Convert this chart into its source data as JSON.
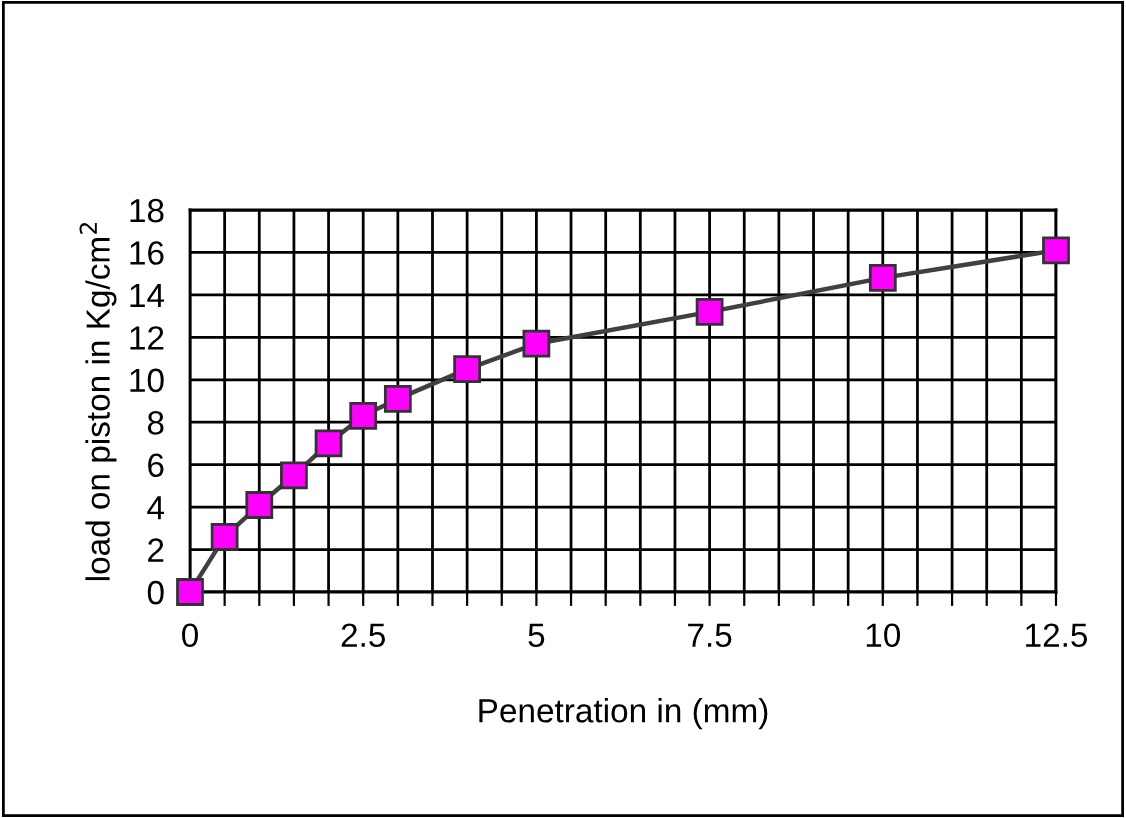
{
  "chart_data": {
    "type": "line",
    "xlabel": "Penetration in (mm)",
    "ylabel": "load on piston in Kg/cm$^{2}$",
    "x": [
      0,
      0.5,
      1,
      1.5,
      2,
      2.5,
      3,
      4,
      5,
      7.5,
      10,
      12.5
    ],
    "series": [
      {
        "color": "#ff00ff",
        "values": [
          0,
          2.6,
          4.1,
          5.5,
          7.0,
          8.3,
          9.1,
          10.5,
          11.7,
          13.2,
          14.8,
          16.1
        ]
      }
    ],
    "xlim": [
      0,
      12.5
    ],
    "ylim": [
      0,
      18
    ],
    "xticks": [
      0,
      {
        "value": 0.5,
        "label": null
      },
      {
        "value": 1,
        "label": null
      },
      {
        "value": 1.5,
        "label": null
      },
      {
        "value": 2,
        "label": null
      },
      2.5,
      {
        "value": 3,
        "label": null
      },
      {
        "value": 3.5,
        "label": null
      },
      {
        "value": 4,
        "label": null
      },
      {
        "value": 4.5,
        "label": null
      },
      5,
      {
        "value": 5.5,
        "label": null
      },
      {
        "value": 6,
        "label": null
      },
      {
        "value": 6.5,
        "label": null
      },
      {
        "value": 7,
        "label": null
      },
      7.5,
      {
        "value": 8,
        "label": null
      },
      {
        "value": 8.5,
        "label": null
      },
      {
        "value": 9,
        "label": null
      },
      {
        "value": 9.5,
        "label": null
      },
      10,
      {
        "value": 10.5,
        "label": null
      },
      {
        "value": 11,
        "label": null
      },
      {
        "value": 11.5,
        "label": null
      },
      {
        "value": 12,
        "label": null
      },
      12.5
    ],
    "yticks": [
      0,
      2,
      4,
      6,
      8,
      10,
      12,
      14,
      16,
      18
    ],
    "grid": true,
    "marker": "square",
    "line_style": "solid"
  }
}
